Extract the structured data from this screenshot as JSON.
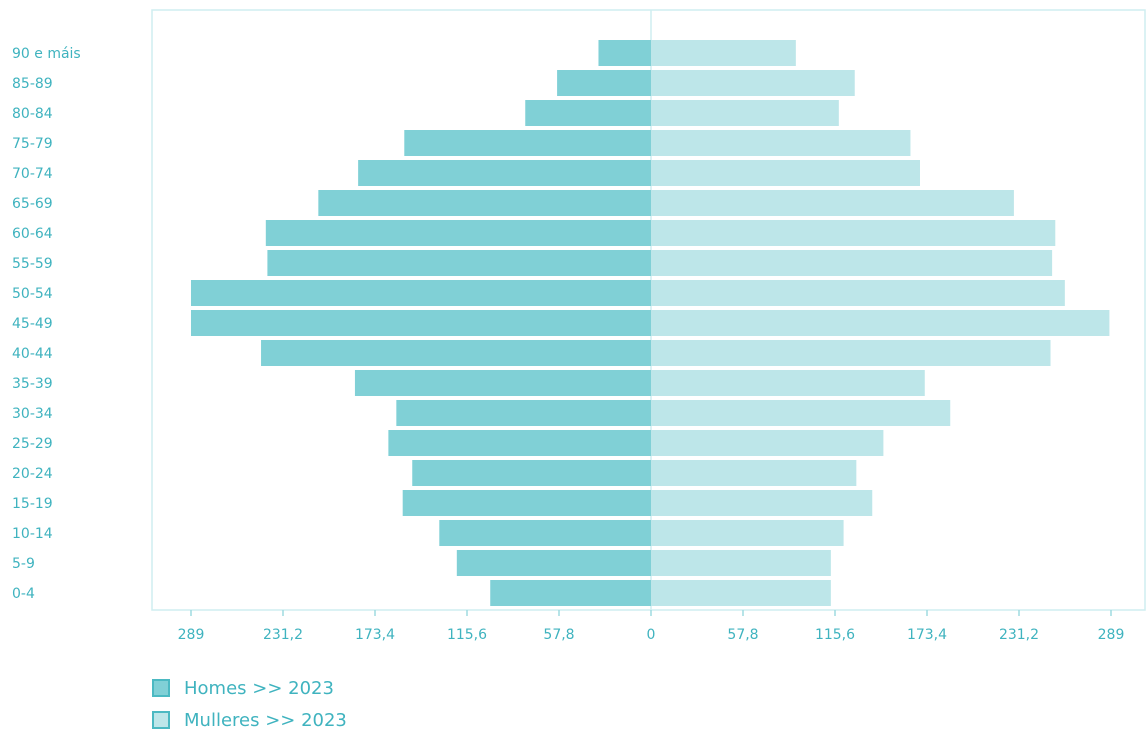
{
  "chart_data": {
    "type": "bar",
    "orientation": "horizontal",
    "categories": [
      "0-4",
      "5-9",
      "10-14",
      "15-19",
      "20-24",
      "25-29",
      "30-34",
      "35-39",
      "40-44",
      "45-49",
      "50-54",
      "55-59",
      "60-64",
      "65-69",
      "70-74",
      "75-79",
      "80-84",
      "85-89",
      "90 e máis"
    ],
    "series": [
      {
        "name": "Homes >> 2023",
        "side": "left",
        "color": "#80d0d6",
        "values": [
          101,
          122,
          133,
          156,
          150,
          165,
          160,
          186,
          245,
          289,
          289,
          241,
          242,
          209,
          184,
          155,
          79,
          59,
          33
        ]
      },
      {
        "name": "Mulleres >> 2023",
        "side": "right",
        "color": "#bde6e9",
        "values": [
          113,
          113,
          121,
          139,
          129,
          146,
          188,
          172,
          251,
          288,
          260,
          252,
          254,
          228,
          169,
          163,
          118,
          128,
          91
        ]
      }
    ],
    "x_tick_labels": [
      "289",
      "231,2",
      "173,4",
      "115,6",
      "57,8",
      "0",
      "57,8",
      "115,6",
      "173,4",
      "231,2",
      "289"
    ],
    "xlim": [
      -289,
      289
    ],
    "grid": false,
    "legend_position": "bottom-left"
  }
}
